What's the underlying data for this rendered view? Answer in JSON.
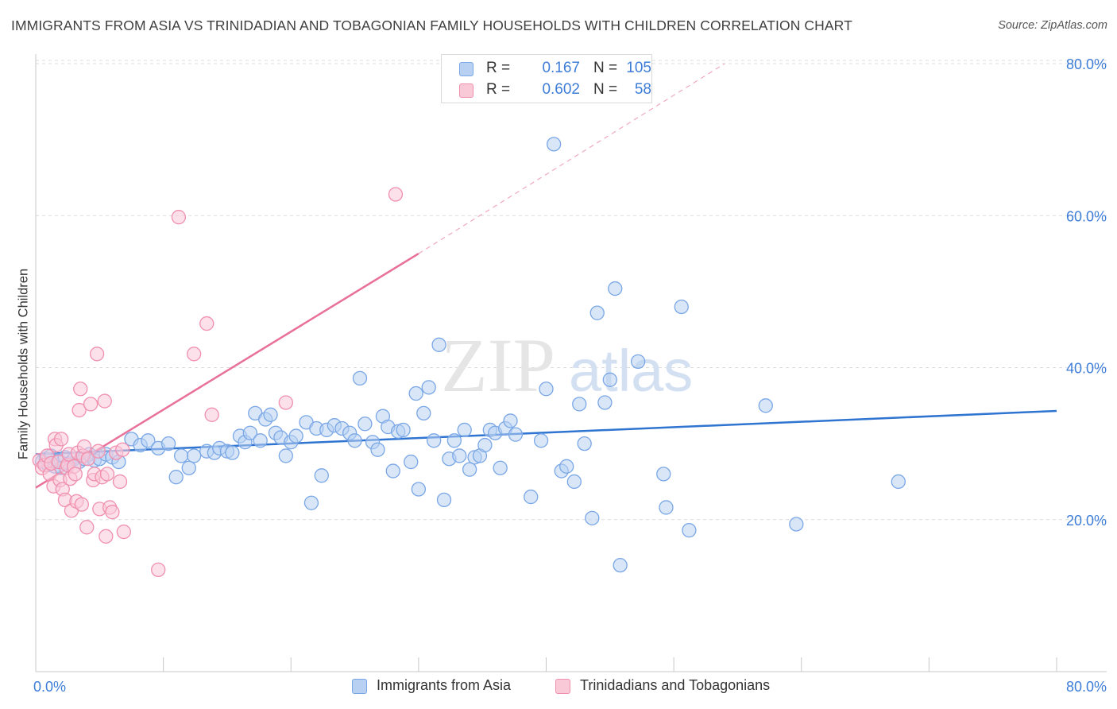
{
  "title": "IMMIGRANTS FROM ASIA VS TRINIDADIAN AND TOBAGONIAN FAMILY HOUSEHOLDS WITH CHILDREN CORRELATION CHART",
  "source": "Source: ZipAtlas.com",
  "watermark": {
    "zip": "ZIP",
    "atlas": "atlas"
  },
  "legend": {
    "rows": [
      {
        "r_label": "R =",
        "r_value": "0.167",
        "n_label": "N =",
        "n_value": "105",
        "color": "#b8d1f3",
        "border": "#7aa7e6"
      },
      {
        "r_label": "R =",
        "r_value": "0.602",
        "n_label": "N =",
        "n_value": "58",
        "color": "#fac9d8",
        "border": "#f090ae"
      }
    ]
  },
  "bottom_legend": [
    {
      "label": "Immigrants from Asia",
      "color": "#b8d1f3",
      "border": "#7aa7e6"
    },
    {
      "label": "Trinidadians and Tobagonians",
      "color": "#fac9d8",
      "border": "#f090ae"
    }
  ],
  "chart_data": {
    "type": "scatter",
    "title": "IMMIGRANTS FROM ASIA VS TRINIDADIAN AND TOBAGONIAN FAMILY HOUSEHOLDS WITH CHILDREN CORRELATION CHART",
    "xlabel": "",
    "ylabel": "Family Households with Children",
    "xlim": [
      0,
      80
    ],
    "ylim": [
      0,
      80
    ],
    "x_tick_labels": [
      "0.0%",
      "80.0%"
    ],
    "y_ticks": [
      20,
      40,
      60,
      80
    ],
    "y_tick_labels": [
      "20.0%",
      "40.0%",
      "60.0%",
      "80.0%"
    ],
    "grid": true,
    "series": [
      {
        "name": "Immigrants from Asia",
        "color": "#7aa7e6",
        "fill": "#b8d1f3",
        "trend_color": "#2f74d0",
        "trend": {
          "x0": 0,
          "y0": 28.6,
          "x1": 80,
          "y1": 34.3
        },
        "points": [
          [
            0.5,
            27.6
          ],
          [
            0.8,
            28.0
          ],
          [
            1.0,
            27.2
          ],
          [
            1.2,
            28.4
          ],
          [
            1.5,
            27.0
          ],
          [
            1.8,
            27.8
          ],
          [
            2.0,
            26.8
          ],
          [
            2.3,
            28.2
          ],
          [
            2.6,
            27.4
          ],
          [
            3.0,
            28.0
          ],
          [
            3.4,
            27.6
          ],
          [
            3.8,
            28.0
          ],
          [
            4.2,
            28.6
          ],
          [
            4.6,
            27.8
          ],
          [
            5.0,
            28.0
          ],
          [
            5.5,
            28.6
          ],
          [
            6.0,
            28.2
          ],
          [
            6.5,
            27.6
          ],
          [
            7.5,
            30.6
          ],
          [
            8.2,
            29.8
          ],
          [
            8.8,
            30.4
          ],
          [
            9.6,
            29.4
          ],
          [
            10.4,
            30.0
          ],
          [
            11.0,
            25.6
          ],
          [
            11.4,
            28.4
          ],
          [
            12.0,
            26.8
          ],
          [
            12.4,
            28.4
          ],
          [
            13.4,
            29.0
          ],
          [
            14.0,
            28.8
          ],
          [
            14.4,
            29.4
          ],
          [
            15.0,
            29.0
          ],
          [
            15.4,
            28.8
          ],
          [
            16.0,
            31.0
          ],
          [
            16.4,
            30.2
          ],
          [
            16.8,
            31.4
          ],
          [
            17.2,
            34.0
          ],
          [
            17.6,
            30.4
          ],
          [
            18.0,
            33.2
          ],
          [
            18.4,
            33.8
          ],
          [
            18.8,
            31.4
          ],
          [
            19.2,
            30.8
          ],
          [
            19.6,
            28.4
          ],
          [
            20.0,
            30.2
          ],
          [
            20.4,
            31.0
          ],
          [
            21.2,
            32.8
          ],
          [
            21.6,
            22.2
          ],
          [
            22.0,
            32.0
          ],
          [
            22.4,
            25.8
          ],
          [
            22.8,
            31.8
          ],
          [
            23.4,
            32.4
          ],
          [
            24.0,
            32.0
          ],
          [
            24.6,
            31.4
          ],
          [
            25.0,
            30.4
          ],
          [
            25.4,
            38.6
          ],
          [
            25.8,
            32.6
          ],
          [
            26.4,
            30.2
          ],
          [
            26.8,
            29.2
          ],
          [
            27.2,
            33.6
          ],
          [
            27.6,
            32.2
          ],
          [
            28.0,
            26.4
          ],
          [
            28.4,
            31.6
          ],
          [
            28.8,
            31.8
          ],
          [
            29.4,
            27.6
          ],
          [
            29.8,
            36.6
          ],
          [
            30.0,
            24.0
          ],
          [
            30.4,
            34.0
          ],
          [
            30.8,
            37.4
          ],
          [
            31.2,
            30.4
          ],
          [
            31.6,
            43.0
          ],
          [
            32.0,
            22.6
          ],
          [
            32.4,
            28.0
          ],
          [
            32.8,
            30.4
          ],
          [
            33.2,
            28.4
          ],
          [
            33.6,
            31.8
          ],
          [
            34.0,
            26.6
          ],
          [
            34.4,
            28.2
          ],
          [
            34.8,
            28.4
          ],
          [
            35.2,
            29.8
          ],
          [
            35.6,
            31.8
          ],
          [
            36.0,
            31.4
          ],
          [
            36.4,
            26.8
          ],
          [
            36.8,
            32.0
          ],
          [
            37.2,
            33.0
          ],
          [
            37.6,
            31.2
          ],
          [
            38.8,
            23.0
          ],
          [
            39.6,
            30.4
          ],
          [
            40.0,
            37.2
          ],
          [
            40.6,
            69.4
          ],
          [
            41.2,
            26.4
          ],
          [
            41.6,
            27.0
          ],
          [
            42.2,
            25.0
          ],
          [
            42.6,
            35.2
          ],
          [
            43.0,
            30.0
          ],
          [
            43.6,
            20.2
          ],
          [
            44.0,
            47.2
          ],
          [
            44.6,
            35.4
          ],
          [
            45.0,
            38.4
          ],
          [
            45.4,
            50.4
          ],
          [
            45.8,
            14.0
          ],
          [
            47.2,
            40.8
          ],
          [
            49.2,
            26.0
          ],
          [
            49.4,
            21.6
          ],
          [
            50.6,
            48.0
          ],
          [
            51.2,
            18.6
          ],
          [
            57.2,
            35.0
          ],
          [
            59.6,
            19.4
          ],
          [
            67.6,
            25.0
          ]
        ]
      },
      {
        "name": "Trinidadians and Tobagonians",
        "color": "#f090ae",
        "fill": "#fac9d8",
        "trend_color": "#e8709a",
        "trend": {
          "x0": 0,
          "y0": 24.2,
          "x1": 30,
          "y1": 55.0
        },
        "trend_ext": {
          "x0": 30,
          "y0": 55.0,
          "x1": 54,
          "y1": 80.0
        },
        "points": [
          [
            0.3,
            27.8
          ],
          [
            0.5,
            26.8
          ],
          [
            0.7,
            27.2
          ],
          [
            0.9,
            28.4
          ],
          [
            1.1,
            26.0
          ],
          [
            1.2,
            27.4
          ],
          [
            1.4,
            24.4
          ],
          [
            1.5,
            30.6
          ],
          [
            1.6,
            29.8
          ],
          [
            1.8,
            27.6
          ],
          [
            1.9,
            25.2
          ],
          [
            2.0,
            30.6
          ],
          [
            2.1,
            24.0
          ],
          [
            2.3,
            22.6
          ],
          [
            2.4,
            26.8
          ],
          [
            2.5,
            27.2
          ],
          [
            2.6,
            28.6
          ],
          [
            2.7,
            25.4
          ],
          [
            2.8,
            21.2
          ],
          [
            3.0,
            27.0
          ],
          [
            3.1,
            26.0
          ],
          [
            3.2,
            22.4
          ],
          [
            3.3,
            28.8
          ],
          [
            3.4,
            34.4
          ],
          [
            3.5,
            37.2
          ],
          [
            3.6,
            22.0
          ],
          [
            3.7,
            28.4
          ],
          [
            3.8,
            29.6
          ],
          [
            4.0,
            19.0
          ],
          [
            4.1,
            28.0
          ],
          [
            4.3,
            35.2
          ],
          [
            4.5,
            25.2
          ],
          [
            4.6,
            26.0
          ],
          [
            4.8,
            41.8
          ],
          [
            4.9,
            29.0
          ],
          [
            5.0,
            21.4
          ],
          [
            5.2,
            25.6
          ],
          [
            5.4,
            35.6
          ],
          [
            5.5,
            17.8
          ],
          [
            5.6,
            26.0
          ],
          [
            5.8,
            21.6
          ],
          [
            6.0,
            21.0
          ],
          [
            6.3,
            28.8
          ],
          [
            6.6,
            25.0
          ],
          [
            6.8,
            29.2
          ],
          [
            6.9,
            18.4
          ],
          [
            9.6,
            13.4
          ],
          [
            11.2,
            59.8
          ],
          [
            12.4,
            41.8
          ],
          [
            13.4,
            45.8
          ],
          [
            13.8,
            33.8
          ],
          [
            19.6,
            35.4
          ],
          [
            28.2,
            62.8
          ]
        ]
      }
    ]
  }
}
